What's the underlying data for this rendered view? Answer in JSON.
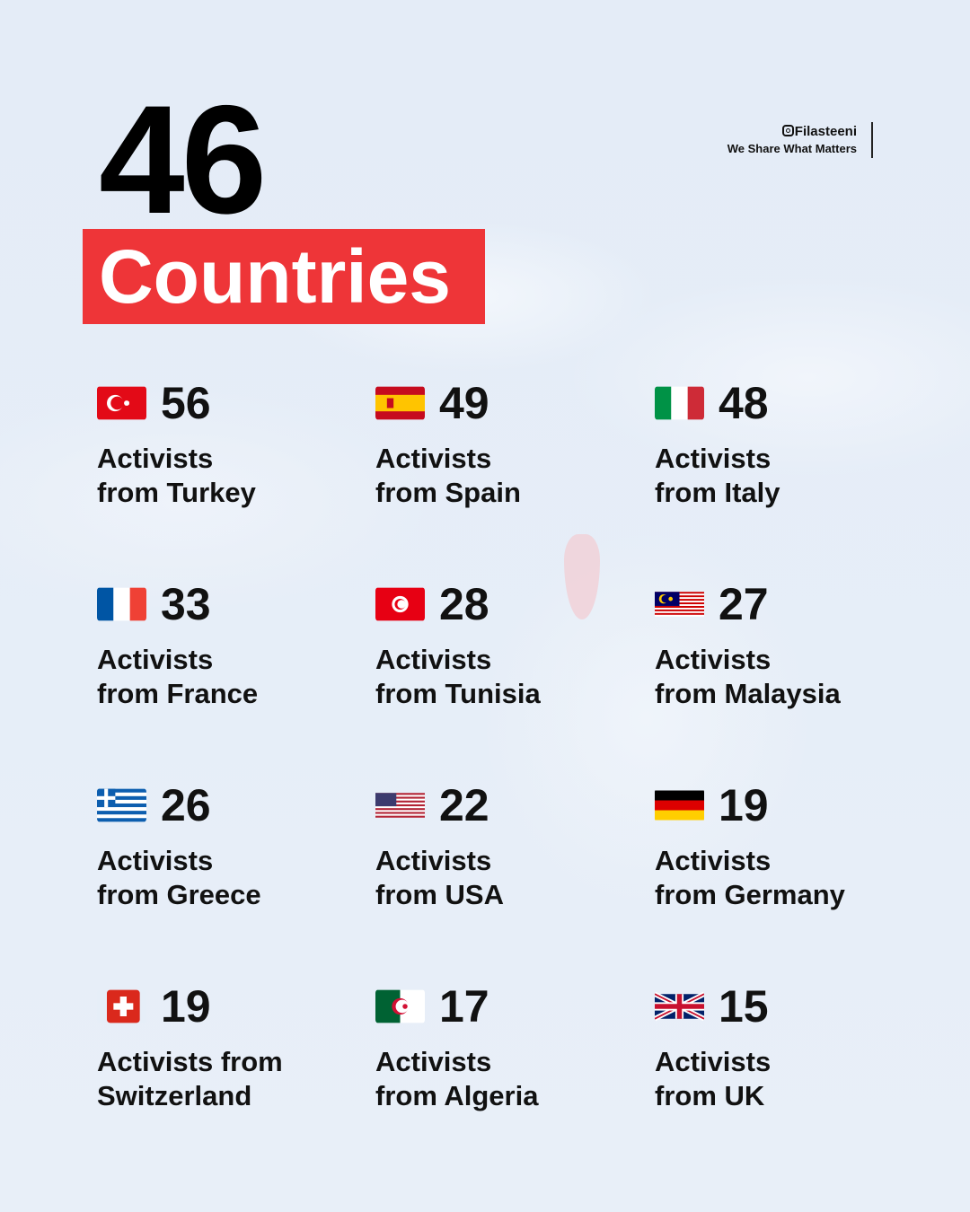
{
  "headline": {
    "number": "46",
    "label": "Countries"
  },
  "brand": {
    "handle": "Filasteeni",
    "tagline": "We Share What Matters",
    "icon": "instagram-icon"
  },
  "colors": {
    "accent": "#ee3538",
    "text": "#111111",
    "background": "#e6eef8"
  },
  "items": [
    {
      "country": "Turkey",
      "count": "56",
      "line1": "Activists",
      "line2": "from Turkey",
      "flag": "turkey-flag-icon"
    },
    {
      "country": "Spain",
      "count": "49",
      "line1": "Activists",
      "line2": "from Spain",
      "flag": "spain-flag-icon"
    },
    {
      "country": "Italy",
      "count": "48",
      "line1": "Activists",
      "line2": "from Italy",
      "flag": "italy-flag-icon"
    },
    {
      "country": "France",
      "count": "33",
      "line1": "Activists",
      "line2": "from France",
      "flag": "france-flag-icon"
    },
    {
      "country": "Tunisia",
      "count": "28",
      "line1": "Activists",
      "line2": "from Tunisia",
      "flag": "tunisia-flag-icon"
    },
    {
      "country": "Malaysia",
      "count": "27",
      "line1": "Activists",
      "line2": "from Malaysia",
      "flag": "malaysia-flag-icon"
    },
    {
      "country": "Greece",
      "count": "26",
      "line1": "Activists",
      "line2": "from Greece",
      "flag": "greece-flag-icon"
    },
    {
      "country": "USA",
      "count": "22",
      "line1": "Activists",
      "line2": "from USA",
      "flag": "usa-flag-icon"
    },
    {
      "country": "Germany",
      "count": "19",
      "line1": "Activists",
      "line2": "from Germany",
      "flag": "germany-flag-icon"
    },
    {
      "country": "Switzerland",
      "count": "19",
      "line1": "Activists from",
      "line2": "Switzerland",
      "flag": "switzerland-flag-icon"
    },
    {
      "country": "Algeria",
      "count": "17",
      "line1": "Activists",
      "line2": "from Algeria",
      "flag": "algeria-flag-icon"
    },
    {
      "country": "UK",
      "count": "15",
      "line1": "Activists",
      "line2": "from UK",
      "flag": "uk-flag-icon"
    }
  ]
}
